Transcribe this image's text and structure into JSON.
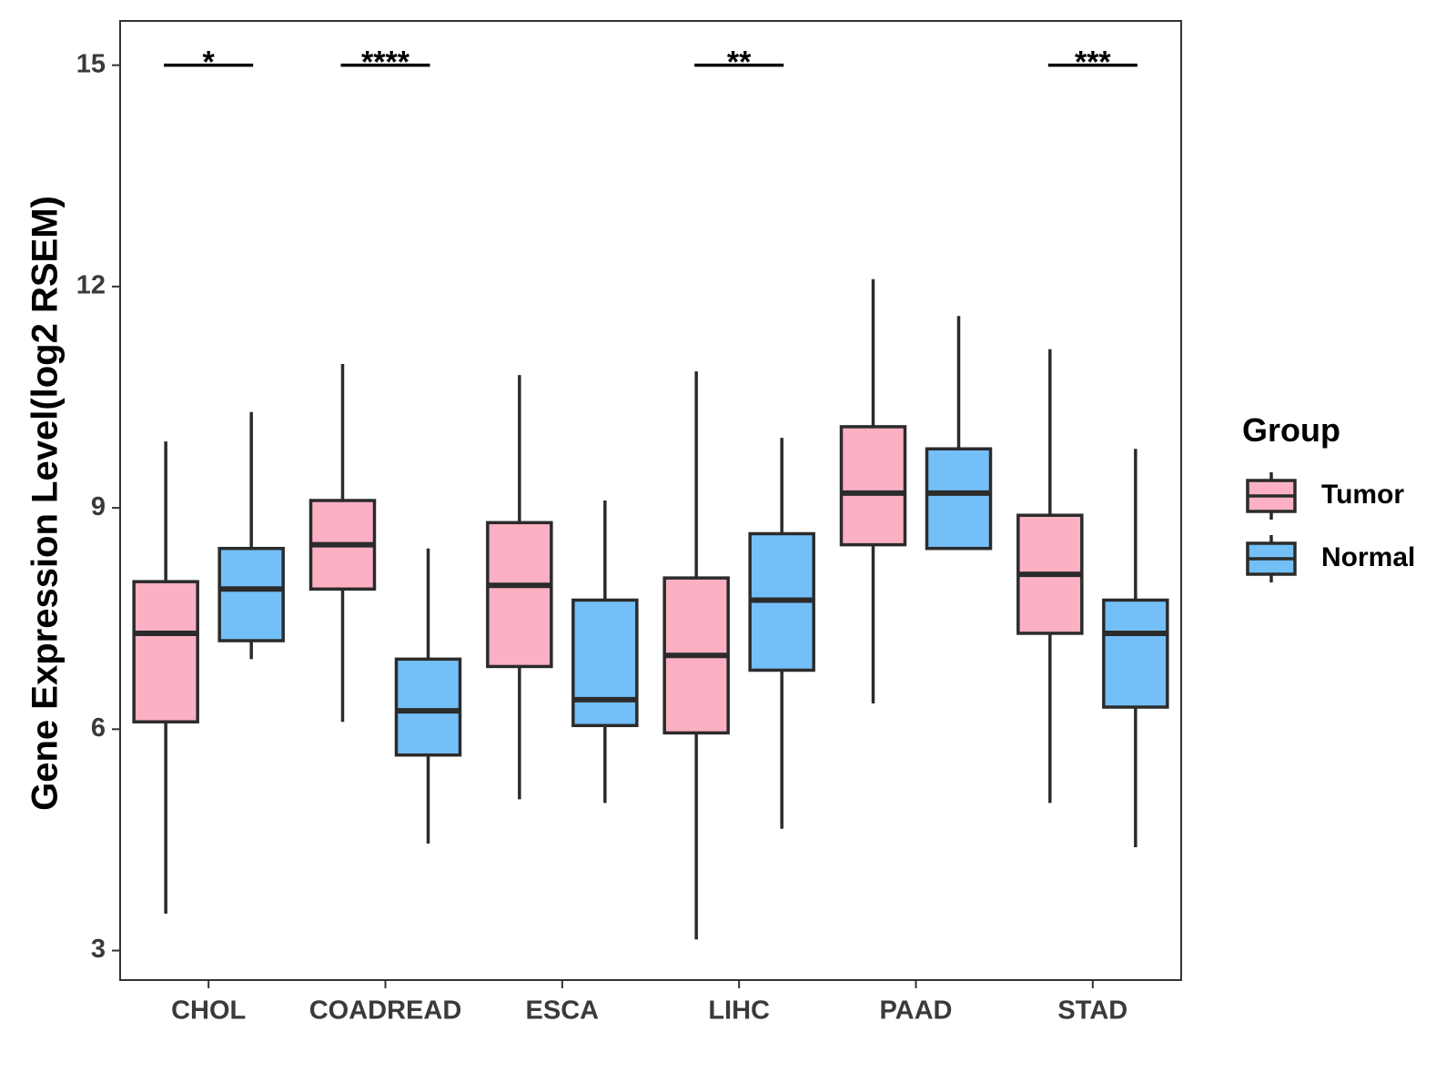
{
  "chart_data": {
    "type": "boxplot",
    "title": "",
    "xlabel": "",
    "ylabel": "Gene Expression Level(log2 RSEM)",
    "ylim": [
      2.6,
      15.6
    ],
    "yticks": [
      3,
      6,
      9,
      12,
      15
    ],
    "grid": false,
    "categories": [
      "CHOL",
      "COADREAD",
      "ESCA",
      "LIHC",
      "PAAD",
      "STAD"
    ],
    "legend": {
      "title": "Group",
      "position": "right",
      "entries": [
        {
          "name": "Tumor",
          "color": "#fbb0c3"
        },
        {
          "name": "Normal",
          "color": "#74bff8"
        }
      ]
    },
    "series": [
      {
        "name": "Tumor",
        "color": "#fbb0c3",
        "boxes": [
          {
            "min": 3.5,
            "q1": 6.1,
            "median": 7.3,
            "q3": 8.0,
            "max": 9.9
          },
          {
            "min": 6.1,
            "q1": 7.9,
            "median": 8.5,
            "q3": 9.1,
            "max": 10.95
          },
          {
            "min": 5.05,
            "q1": 6.85,
            "median": 7.95,
            "q3": 8.8,
            "max": 10.8
          },
          {
            "min": 3.15,
            "q1": 5.95,
            "median": 7.0,
            "q3": 8.05,
            "max": 10.85
          },
          {
            "min": 6.35,
            "q1": 8.5,
            "median": 9.2,
            "q3": 10.1,
            "max": 12.1
          },
          {
            "min": 5.0,
            "q1": 7.3,
            "median": 8.1,
            "q3": 8.9,
            "max": 11.15
          }
        ]
      },
      {
        "name": "Normal",
        "color": "#74bff8",
        "boxes": [
          {
            "min": 6.95,
            "q1": 7.2,
            "median": 7.9,
            "q3": 8.45,
            "max": 10.3
          },
          {
            "min": 4.45,
            "q1": 5.65,
            "median": 6.25,
            "q3": 6.95,
            "max": 8.45
          },
          {
            "min": 5.0,
            "q1": 6.05,
            "median": 6.4,
            "q3": 7.75,
            "max": 9.1
          },
          {
            "min": 4.65,
            "q1": 6.8,
            "median": 7.75,
            "q3": 8.65,
            "max": 9.95
          },
          {
            "min": 8.45,
            "q1": 8.45,
            "median": 9.2,
            "q3": 9.8,
            "max": 11.6
          },
          {
            "min": 4.4,
            "q1": 6.3,
            "median": 7.3,
            "q3": 7.75,
            "max": 9.8
          }
        ]
      }
    ],
    "annotations": [
      {
        "category": "CHOL",
        "label": "*",
        "y": 15
      },
      {
        "category": "COADREAD",
        "label": "****",
        "y": 15
      },
      {
        "category": "LIHC",
        "label": "**",
        "y": 15
      },
      {
        "category": "STAD",
        "label": "***",
        "y": 15
      }
    ]
  },
  "colors": {
    "outline": "#2b2b2b",
    "axis_text": "#3a3a3a",
    "panel_border": "#333333"
  }
}
